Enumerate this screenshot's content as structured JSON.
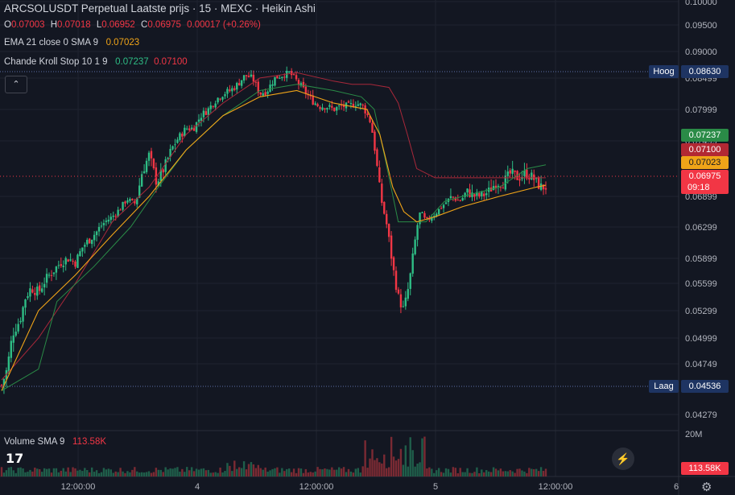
{
  "title": "ARCSOLUSDT Perpetual Laatste prijs · 15 · MEXC · Heikin Ashi",
  "ohlc": {
    "o_label": "O",
    "o": "0.07003",
    "h_label": "H",
    "h": "0.07018",
    "l_label": "L",
    "l": "0.06952",
    "c_label": "C",
    "c": "0.06975",
    "change": "0.00017 (+0.26%)"
  },
  "ema": {
    "label": "EMA 21 close 0 SMA 9",
    "value": "0.07023"
  },
  "chande": {
    "label": "Chande Kroll Stop 10 1 9",
    "stop_long": "0.07237",
    "stop_short": "0.07100"
  },
  "volume": {
    "label": "Volume SMA 9",
    "value": "113.58K"
  },
  "collapse_icon": "chevron-up-icon",
  "high_label": "Hoog",
  "high_value": "0.08630",
  "low_label": "Laag",
  "low_value": "0.04536",
  "tags": {
    "stop_long": "0.07237",
    "stop_short": "0.07100",
    "ema": "0.07023",
    "last": "0.06975",
    "countdown": "09:18",
    "volume": "113.58K"
  },
  "price_axis": [
    "0.10000",
    "0.09500",
    "0.09000",
    "0.08499",
    "0.07999",
    "0.07499",
    "0.06899",
    "0.06299",
    "0.05899",
    "0.05599",
    "0.05299",
    "0.04999",
    "0.04749",
    "0.04279"
  ],
  "volume_axis": "20M",
  "time_axis": [
    "12:00:00",
    "4",
    "12:00:00",
    "5",
    "12:00:00",
    "6"
  ],
  "colors": {
    "up": "#2ebd85",
    "down": "#f23645",
    "ema": "#f0a418",
    "stop_long": "#2a8b47",
    "stop_short": "#a8283a",
    "background": "#131722"
  },
  "chart_data": {
    "type": "candlestick",
    "style": "Heikin Ashi",
    "symbol": "ARCSOLUSDT",
    "timeframe": "15",
    "exchange": "MEXC",
    "ylim": [
      0.0415,
      0.1001
    ],
    "grid": true,
    "x_ticks": [
      "12:00:00",
      "4",
      "12:00:00",
      "5",
      "12:00:00",
      "6"
    ],
    "y_ticks": [
      0.1,
      0.095,
      0.09,
      0.08499,
      0.07999,
      0.07499,
      0.06899,
      0.06299,
      0.05899,
      0.05599,
      0.05299,
      0.04999,
      0.04749,
      0.04279
    ],
    "price_path": [
      [
        0,
        0.0455
      ],
      [
        0.3,
        0.047
      ],
      [
        0.6,
        0.0505
      ],
      [
        1.0,
        0.052
      ],
      [
        1.3,
        0.0545
      ],
      [
        1.6,
        0.0555
      ],
      [
        2.0,
        0.055
      ],
      [
        2.4,
        0.0565
      ],
      [
        2.8,
        0.0575
      ],
      [
        3.2,
        0.0585
      ],
      [
        3.6,
        0.059
      ],
      [
        4.0,
        0.0585
      ],
      [
        4.4,
        0.0605
      ],
      [
        4.8,
        0.0615
      ],
      [
        5.2,
        0.0625
      ],
      [
        5.6,
        0.064
      ],
      [
        6.0,
        0.065
      ],
      [
        6.4,
        0.0665
      ],
      [
        6.8,
        0.0685
      ],
      [
        7.2,
        0.0675
      ],
      [
        7.6,
        0.0715
      ],
      [
        8.0,
        0.0735
      ],
      [
        8.4,
        0.0705
      ],
      [
        8.8,
        0.072
      ],
      [
        9.2,
        0.074
      ],
      [
        9.6,
        0.0755
      ],
      [
        10.0,
        0.077
      ],
      [
        10.4,
        0.077
      ],
      [
        10.8,
        0.079
      ],
      [
        11.2,
        0.08
      ],
      [
        11.6,
        0.0815
      ],
      [
        12.0,
        0.0825
      ],
      [
        12.4,
        0.083
      ],
      [
        12.8,
        0.084
      ],
      [
        13.2,
        0.0855
      ],
      [
        13.6,
        0.085
      ],
      [
        14.0,
        0.0825
      ],
      [
        14.4,
        0.083
      ],
      [
        14.8,
        0.085
      ],
      [
        15.2,
        0.0855
      ],
      [
        15.6,
        0.086
      ],
      [
        16.0,
        0.0845
      ],
      [
        16.4,
        0.083
      ],
      [
        16.8,
        0.0815
      ],
      [
        17.2,
        0.0805
      ],
      [
        17.6,
        0.0805
      ],
      [
        18.0,
        0.08
      ],
      [
        18.4,
        0.0805
      ],
      [
        18.8,
        0.0805
      ],
      [
        19.2,
        0.081
      ],
      [
        19.6,
        0.0805
      ],
      [
        20.0,
        0.078
      ],
      [
        20.3,
        0.073
      ],
      [
        20.6,
        0.068
      ],
      [
        20.9,
        0.063
      ],
      [
        21.2,
        0.058
      ],
      [
        21.5,
        0.0545
      ],
      [
        21.8,
        0.053
      ],
      [
        22.1,
        0.056
      ],
      [
        22.4,
        0.061
      ],
      [
        22.7,
        0.066
      ],
      [
        23.0,
        0.064
      ],
      [
        23.3,
        0.065
      ],
      [
        23.6,
        0.066
      ],
      [
        24.0,
        0.0675
      ],
      [
        24.4,
        0.069
      ],
      [
        24.8,
        0.068
      ],
      [
        25.2,
        0.0695
      ],
      [
        25.6,
        0.069
      ],
      [
        26.0,
        0.069
      ],
      [
        26.4,
        0.0695
      ],
      [
        26.8,
        0.0705
      ],
      [
        27.2,
        0.0705
      ],
      [
        27.6,
        0.0715
      ],
      [
        28.0,
        0.071
      ],
      [
        28.4,
        0.0715
      ],
      [
        28.8,
        0.071
      ],
      [
        29.2,
        0.07
      ],
      [
        29.5,
        0.07
      ]
    ],
    "ema21_path": [
      [
        0,
        0.045
      ],
      [
        2,
        0.053
      ],
      [
        4,
        0.057
      ],
      [
        6,
        0.062
      ],
      [
        8,
        0.069
      ],
      [
        10,
        0.074
      ],
      [
        12,
        0.079
      ],
      [
        14,
        0.082
      ],
      [
        16,
        0.083
      ],
      [
        18,
        0.081
      ],
      [
        19.8,
        0.08
      ],
      [
        20.5,
        0.076
      ],
      [
        21.2,
        0.07
      ],
      [
        21.8,
        0.066
      ],
      [
        22.5,
        0.064
      ],
      [
        23.5,
        0.065
      ],
      [
        25,
        0.067
      ],
      [
        27,
        0.069
      ],
      [
        29,
        0.07
      ],
      [
        29.5,
        0.0702
      ]
    ],
    "stop_long_path": [
      [
        0,
        0.045
      ],
      [
        2,
        0.047
      ],
      [
        3,
        0.054
      ],
      [
        5,
        0.058
      ],
      [
        7,
        0.063
      ],
      [
        8.5,
        0.07
      ],
      [
        10,
        0.074
      ],
      [
        12,
        0.079
      ],
      [
        14,
        0.083
      ],
      [
        16,
        0.084
      ],
      [
        18,
        0.083
      ],
      [
        19.5,
        0.082
      ],
      [
        20.2,
        0.08
      ],
      [
        20.8,
        0.073
      ],
      [
        21.5,
        0.064
      ],
      [
        22,
        0.064
      ],
      [
        23,
        0.064
      ],
      [
        23.5,
        0.066
      ],
      [
        24,
        0.068
      ],
      [
        25,
        0.069
      ],
      [
        27,
        0.07
      ],
      [
        28.5,
        0.072
      ],
      [
        29.5,
        0.0724
      ]
    ],
    "stop_short_path": [
      [
        0,
        0.046
      ],
      [
        2,
        0.05
      ],
      [
        4,
        0.056
      ],
      [
        6,
        0.064
      ],
      [
        8,
        0.07
      ],
      [
        10,
        0.076
      ],
      [
        12,
        0.081
      ],
      [
        14,
        0.085
      ],
      [
        16,
        0.086
      ],
      [
        18,
        0.0845
      ],
      [
        19,
        0.084
      ],
      [
        20,
        0.084
      ],
      [
        21,
        0.0835
      ],
      [
        21.5,
        0.081
      ],
      [
        22,
        0.076
      ],
      [
        22.5,
        0.072
      ],
      [
        23.5,
        0.071
      ],
      [
        25,
        0.071
      ],
      [
        27,
        0.071
      ],
      [
        29.5,
        0.071
      ]
    ],
    "volume_series_note": "",
    "last_price": 0.06975,
    "high": 0.0863,
    "low": 0.04536
  }
}
